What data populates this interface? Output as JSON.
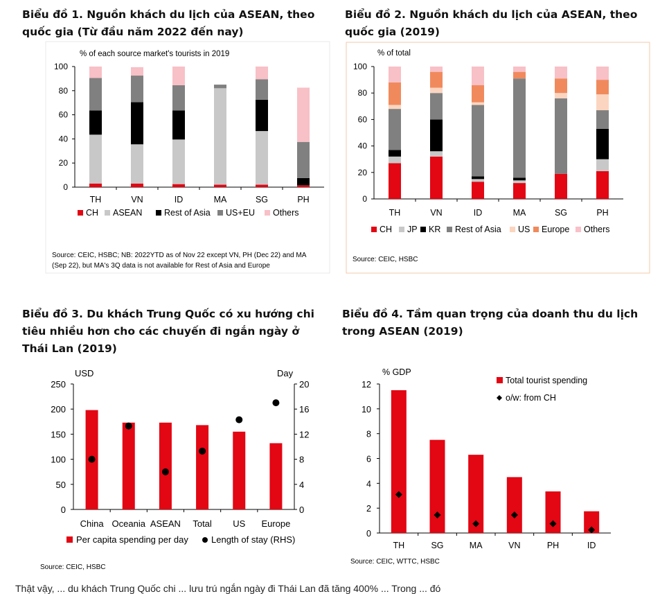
{
  "panels": [
    {
      "title_line1": "Biểu đồ 1. Nguồn khách du lịch của ASEAN, theo",
      "title_line2": "quốc gia (Từ đầu năm 2022 đến nay)",
      "title_line3": ""
    },
    {
      "title_line1": "Biểu đồ 2. Nguồn khách du lịch của ASEAN, theo",
      "title_line2": "quốc gia (2019)",
      "title_line3": ""
    },
    {
      "title_line1": "Biểu đồ 3. Du khách Trung Quốc có xu hướng chi",
      "title_line2": "tiêu nhiều hơn cho các chuyến đi ngắn ngày ở",
      "title_line3": "Thái Lan (2019)"
    },
    {
      "title_line1": "Biểu đồ 4. Tầm quan trọng của doanh thu du lịch",
      "title_line2": "trong ASEAN (2019)",
      "title_line3": ""
    }
  ],
  "bottom_text": "Thật vậy, ... du khách Trung Quốc chi ... lưu trú ngắn ngày đi Thái Lan đã tăng 400% ... Trong ... đó",
  "chart_data": [
    {
      "type": "bar",
      "stacked": true,
      "title": "Biểu đồ 1. Nguồn khách du lịch của ASEAN, theo quốc gia (Từ đầu năm 2022 đến nay)",
      "ylabel": "% of each source market's tourists in 2019",
      "ylim": [
        0,
        100
      ],
      "yticks": [
        0,
        20,
        40,
        60,
        80,
        100
      ],
      "categories": [
        "TH",
        "VN",
        "ID",
        "MA",
        "SG",
        "PH"
      ],
      "series": [
        {
          "name": "CH",
          "color": "#e30613",
          "values": [
            3,
            3,
            2.5,
            2,
            2,
            1.5
          ]
        },
        {
          "name": "ASEAN",
          "color": "#c8c8c8",
          "values": [
            40.5,
            32.5,
            37,
            80,
            44.5,
            0
          ]
        },
        {
          "name": "Rest of Asia",
          "color": "#000000",
          "values": [
            20,
            35,
            24,
            0,
            26,
            6
          ]
        },
        {
          "name": "US+EU",
          "color": "#808080",
          "values": [
            27,
            22,
            21,
            3,
            17,
            30
          ]
        },
        {
          "name": "Others",
          "color": "#f8c0c7",
          "values": [
            9.5,
            7,
            15.5,
            0,
            10.5,
            45
          ]
        }
      ],
      "legend_position": "bottom",
      "source": "Source: CEIC, HSBC; NB: 2022YTD as of Nov 22 except VN, PH (Dec 22) and MA",
      "source_line2": "(Sep 22), but MA's 3Q data is not available for Rest of Asia and Europe"
    },
    {
      "type": "bar",
      "stacked": true,
      "title": "Biểu đồ 2. Nguồn khách du lịch của ASEAN, theo quốc gia (2019)",
      "ylabel": "% of total",
      "ylim": [
        0,
        100
      ],
      "yticks": [
        0,
        20,
        40,
        60,
        80,
        100
      ],
      "categories": [
        "TH",
        "VN",
        "ID",
        "MA",
        "SG",
        "PH"
      ],
      "series": [
        {
          "name": "CH",
          "color": "#e30613",
          "values": [
            27,
            32,
            13,
            12,
            19,
            21
          ]
        },
        {
          "name": "JP",
          "color": "#c8c8c8",
          "values": [
            5,
            4,
            2,
            2,
            0,
            9
          ]
        },
        {
          "name": "KR",
          "color": "#000000",
          "values": [
            5,
            24,
            2,
            2,
            0,
            23
          ]
        },
        {
          "name": "Rest of Asia",
          "color": "#808080",
          "values": [
            31,
            20,
            54,
            75,
            57,
            14
          ]
        },
        {
          "name": "US",
          "color": "#fcd5c0",
          "values": [
            3,
            4,
            2,
            0,
            4,
            12
          ]
        },
        {
          "name": "Europe",
          "color": "#f08a5d",
          "values": [
            17,
            12,
            13,
            5,
            11,
            11
          ]
        },
        {
          "name": "Others",
          "color": "#f8c0c7",
          "values": [
            12,
            4,
            14,
            4,
            9,
            10
          ]
        }
      ],
      "legend_position": "bottom",
      "source": "Source: CEIC, HSBC"
    },
    {
      "type": "bar",
      "dual_axis": true,
      "title": "Biểu đồ 3. Du khách Trung Quốc có xu hướng chi tiêu nhiều hơn cho các chuyến đi ngắn ngày ở Thái Lan (2019)",
      "ylabel": "USD",
      "y2label": "Day",
      "ylim": [
        0,
        250
      ],
      "y2lim": [
        0,
        20
      ],
      "yticks": [
        0,
        50,
        100,
        150,
        200,
        250
      ],
      "y2ticks": [
        0,
        4,
        8,
        12,
        16,
        20
      ],
      "categories": [
        "China",
        "Oceania",
        "ASEAN",
        "Total",
        "US",
        "Europe"
      ],
      "series": [
        {
          "name": "Per capita spending per day",
          "color": "#e30613",
          "values": [
            198,
            173,
            173,
            168,
            155,
            132
          ]
        },
        {
          "name": "Length of stay (RHS)",
          "color": "#000000",
          "axis": "right",
          "values": [
            8,
            13.3,
            6,
            9.3,
            14.3,
            17
          ]
        }
      ],
      "legend_position": "bottom",
      "source": "Source: CEIC, HSBC"
    },
    {
      "type": "bar",
      "title": "Biểu đồ 4. Tầm quan trọng của doanh thu du lịch trong ASEAN (2019)",
      "ylabel": "% GDP",
      "ylim": [
        0,
        12
      ],
      "yticks": [
        0,
        2,
        4,
        6,
        8,
        10,
        12
      ],
      "categories": [
        "TH",
        "SG",
        "MA",
        "VN",
        "PH",
        "ID"
      ],
      "series": [
        {
          "name": "Total tourist spending",
          "color": "#e30613",
          "values": [
            11.5,
            7.5,
            6.3,
            4.5,
            3.35,
            1.75
          ]
        },
        {
          "name": "o/w: from CH",
          "color": "#000000",
          "values": [
            3.1,
            1.45,
            0.75,
            1.45,
            0.75,
            0.25
          ]
        }
      ],
      "legend_position": "top-right",
      "source": "Source: CEIC, WTTC, HSBC"
    }
  ]
}
